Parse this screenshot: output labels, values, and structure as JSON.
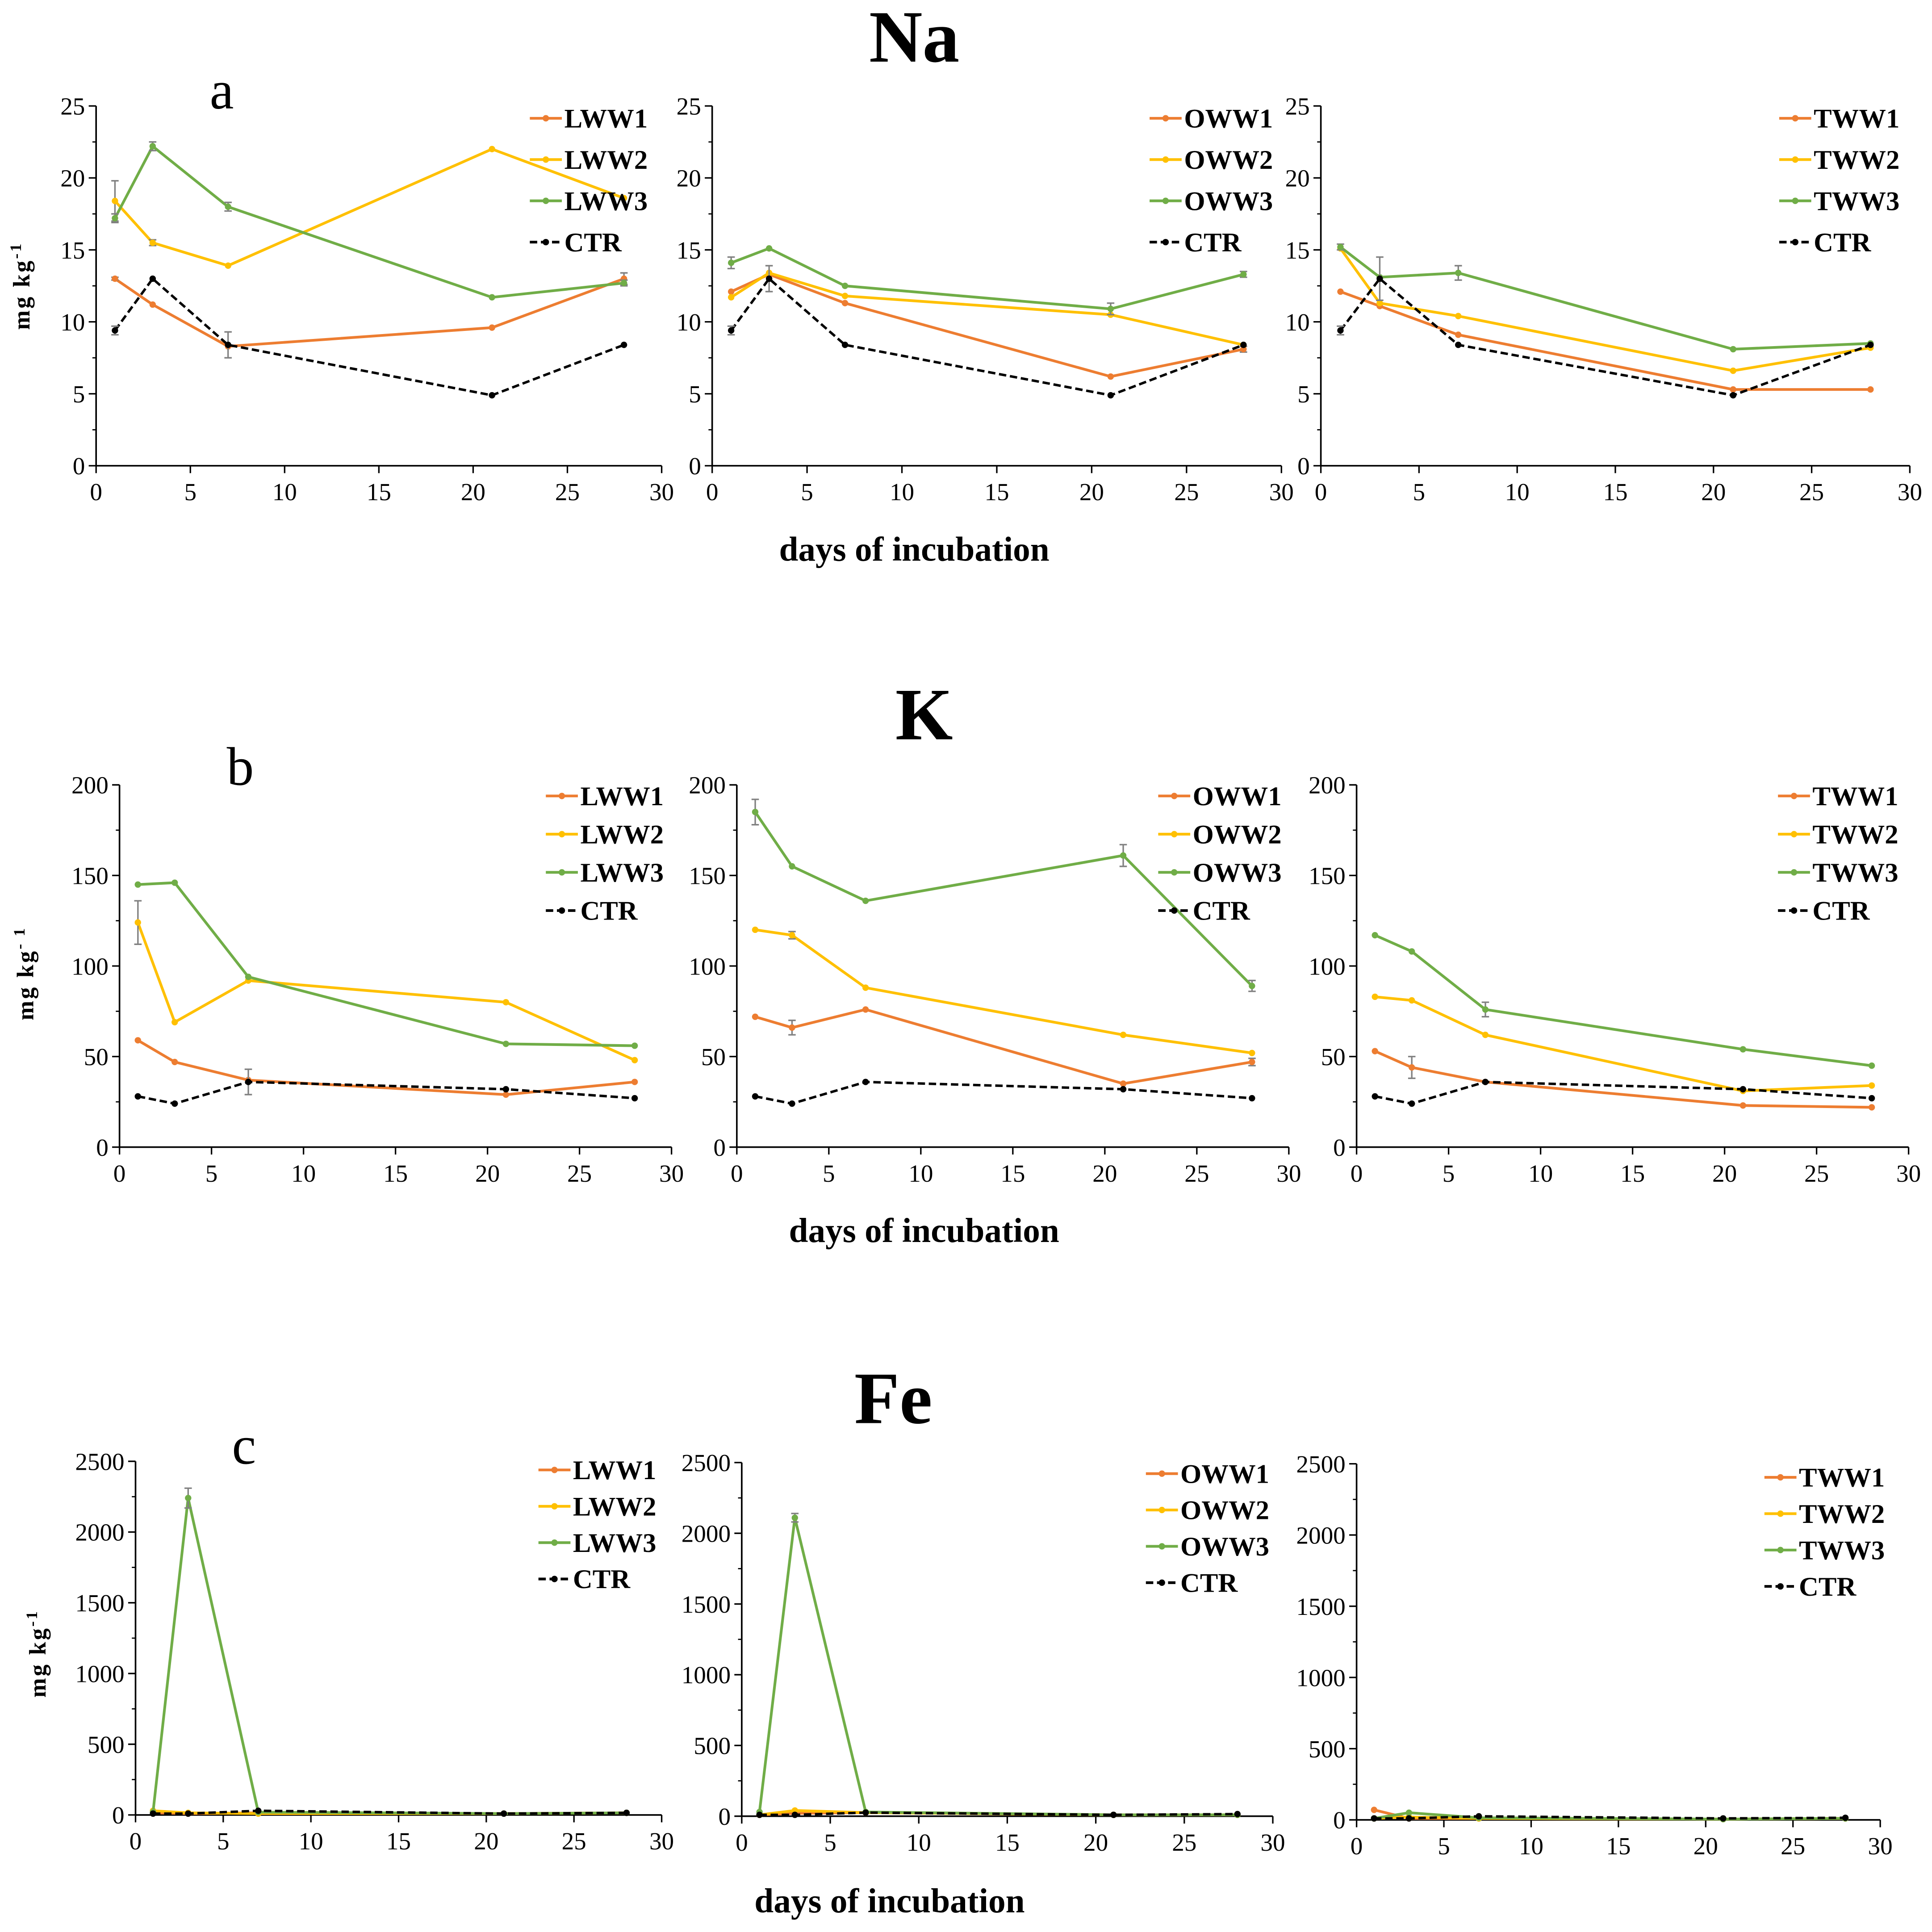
{
  "sections": [
    {
      "title": "Na",
      "panel_letter": "a",
      "xlabel": "days of incubation",
      "ylabel": "mg kg",
      "ylabel_sup": "-1"
    },
    {
      "title": "K",
      "panel_letter": "b",
      "xlabel": "days of incubation",
      "ylabel": "mg kg",
      "ylabel_sup": "- 1"
    },
    {
      "title": "Fe",
      "panel_letter": "c",
      "xlabel": "days of incubation",
      "ylabel": "mg kg",
      "ylabel_sup": "-1"
    }
  ],
  "colors": {
    "series1": "#ED7D31",
    "series2": "#FFC000",
    "series3": "#70AD47",
    "control": "#000000",
    "error_bar": "#808080",
    "axis": "#000000"
  },
  "chart_data": [
    {
      "type": "line",
      "legend": "top-right",
      "x": [
        1,
        3,
        7,
        21,
        28
      ],
      "xlim": [
        0,
        30
      ],
      "ylim": [
        0,
        25
      ],
      "xticks": [
        0,
        5,
        10,
        15,
        20,
        25,
        30
      ],
      "yticks": [
        0,
        5,
        10,
        15,
        20,
        25
      ],
      "series": [
        {
          "name": "LWW1",
          "color": "#ED7D31",
          "dashed": false,
          "values": [
            13.0,
            11.2,
            8.3,
            9.6,
            13.0
          ],
          "yerr": [
            0.1,
            0,
            0,
            0,
            0.4
          ]
        },
        {
          "name": "LWW2",
          "color": "#FFC000",
          "dashed": false,
          "values": [
            18.4,
            15.5,
            13.9,
            22.0,
            18.6
          ],
          "yerr": [
            1.4,
            0.2,
            0,
            0,
            0
          ]
        },
        {
          "name": "LWW3",
          "color": "#70AD47",
          "dashed": false,
          "values": [
            17.2,
            22.2,
            18.0,
            11.7,
            12.7
          ],
          "yerr": [
            0.3,
            0.3,
            0.3,
            0,
            0.2
          ]
        },
        {
          "name": "CTR",
          "color": "#000000",
          "dashed": true,
          "values": [
            9.4,
            13.0,
            8.4,
            4.9,
            8.4
          ],
          "yerr": [
            0.3,
            0,
            0.9,
            0,
            0
          ]
        }
      ]
    },
    {
      "type": "line",
      "legend": "top-right",
      "x": [
        1,
        3,
        7,
        21,
        28
      ],
      "xlim": [
        0,
        30
      ],
      "ylim": [
        0,
        25
      ],
      "xticks": [
        0,
        5,
        10,
        15,
        20,
        25,
        30
      ],
      "yticks": [
        0,
        5,
        10,
        15,
        20,
        25
      ],
      "series": [
        {
          "name": "OWW1",
          "color": "#ED7D31",
          "dashed": false,
          "values": [
            12.1,
            13.3,
            11.3,
            6.2,
            8.1
          ],
          "yerr": [
            0,
            0,
            0,
            0,
            0.2
          ]
        },
        {
          "name": "OWW2",
          "color": "#FFC000",
          "dashed": false,
          "values": [
            11.7,
            13.4,
            11.8,
            10.5,
            8.4
          ]
        },
        {
          "name": "OWW3",
          "color": "#70AD47",
          "dashed": false,
          "values": [
            14.1,
            15.1,
            12.5,
            10.9,
            13.3
          ],
          "yerr": [
            0.4,
            0,
            0,
            0.4,
            0.2
          ]
        },
        {
          "name": "CTR",
          "color": "#000000",
          "dashed": true,
          "values": [
            9.4,
            13.0,
            8.4,
            4.9,
            8.4
          ],
          "yerr": [
            0.3,
            0.9,
            0,
            0,
            0
          ]
        }
      ]
    },
    {
      "type": "line",
      "legend": "top-right",
      "x": [
        1,
        3,
        7,
        21,
        28
      ],
      "xlim": [
        0,
        30
      ],
      "ylim": [
        0,
        25
      ],
      "xticks": [
        0,
        5,
        10,
        15,
        20,
        25,
        30
      ],
      "yticks": [
        0,
        5,
        10,
        15,
        20,
        25
      ],
      "series": [
        {
          "name": "TWW1",
          "color": "#ED7D31",
          "dashed": false,
          "values": [
            12.1,
            11.1,
            9.1,
            5.3,
            5.3
          ]
        },
        {
          "name": "TWW2",
          "color": "#FFC000",
          "dashed": false,
          "values": [
            15.1,
            11.3,
            10.4,
            6.6,
            8.2
          ]
        },
        {
          "name": "TWW3",
          "color": "#70AD47",
          "dashed": false,
          "values": [
            15.2,
            13.1,
            13.4,
            8.1,
            8.5
          ],
          "yerr": [
            0.2,
            0,
            0.5,
            0,
            0
          ]
        },
        {
          "name": "CTR",
          "color": "#000000",
          "dashed": true,
          "values": [
            9.4,
            13.0,
            8.4,
            4.9,
            8.4
          ],
          "yerr": [
            0.3,
            1.5,
            0,
            0,
            0
          ]
        }
      ]
    },
    {
      "type": "line",
      "legend": "top-right",
      "x": [
        1,
        3,
        7,
        21,
        28
      ],
      "xlim": [
        0,
        30
      ],
      "ylim": [
        0,
        200
      ],
      "xticks": [
        0,
        5,
        10,
        15,
        20,
        25,
        30
      ],
      "yticks": [
        0,
        50,
        100,
        150,
        200
      ],
      "series": [
        {
          "name": "LWW1",
          "color": "#ED7D31",
          "dashed": false,
          "values": [
            59,
            47,
            37,
            29,
            36
          ]
        },
        {
          "name": "LWW2",
          "color": "#FFC000",
          "dashed": false,
          "values": [
            124,
            69,
            92,
            80,
            48
          ],
          "yerr": [
            12,
            0,
            0,
            0,
            0
          ]
        },
        {
          "name": "LWW3",
          "color": "#70AD47",
          "dashed": false,
          "values": [
            145,
            146,
            94,
            57,
            56
          ]
        },
        {
          "name": "CTR",
          "color": "#000000",
          "dashed": true,
          "values": [
            28,
            24,
            36,
            32,
            27
          ],
          "yerr": [
            0,
            0,
            7,
            0,
            0
          ]
        }
      ]
    },
    {
      "type": "line",
      "legend": "top-right",
      "x": [
        1,
        3,
        7,
        21,
        28
      ],
      "xlim": [
        0,
        30
      ],
      "ylim": [
        0,
        200
      ],
      "xticks": [
        0,
        5,
        10,
        15,
        20,
        25,
        30
      ],
      "yticks": [
        0,
        50,
        100,
        150,
        200
      ],
      "series": [
        {
          "name": "OWW1",
          "color": "#ED7D31",
          "dashed": false,
          "values": [
            72,
            66,
            76,
            35,
            47
          ],
          "yerr": [
            0,
            4,
            0,
            0,
            2
          ]
        },
        {
          "name": "OWW2",
          "color": "#FFC000",
          "dashed": false,
          "values": [
            120,
            117,
            88,
            62,
            52
          ],
          "yerr": [
            0,
            2,
            0,
            0,
            0
          ]
        },
        {
          "name": "OWW3",
          "color": "#70AD47",
          "dashed": false,
          "values": [
            185,
            155,
            136,
            161,
            89
          ],
          "yerr": [
            7,
            0,
            0,
            6,
            3
          ]
        },
        {
          "name": "CTR",
          "color": "#000000",
          "dashed": true,
          "values": [
            28,
            24,
            36,
            32,
            27
          ]
        }
      ]
    },
    {
      "type": "line",
      "legend": "top-right",
      "x": [
        1,
        3,
        7,
        21,
        28
      ],
      "xlim": [
        0,
        30
      ],
      "ylim": [
        0,
        200
      ],
      "xticks": [
        0,
        5,
        10,
        15,
        20,
        25,
        30
      ],
      "yticks": [
        0,
        50,
        100,
        150,
        200
      ],
      "series": [
        {
          "name": "TWW1",
          "color": "#ED7D31",
          "dashed": false,
          "values": [
            53,
            44,
            36,
            23,
            22
          ],
          "yerr": [
            0,
            6,
            0,
            0,
            0
          ]
        },
        {
          "name": "TWW2",
          "color": "#FFC000",
          "dashed": false,
          "values": [
            83,
            81,
            62,
            31,
            34
          ]
        },
        {
          "name": "TWW3",
          "color": "#70AD47",
          "dashed": false,
          "values": [
            117,
            108,
            76,
            54,
            45
          ],
          "yerr": [
            0,
            0,
            4,
            0,
            0
          ]
        },
        {
          "name": "CTR",
          "color": "#000000",
          "dashed": true,
          "values": [
            28,
            24,
            36,
            32,
            27
          ]
        }
      ]
    },
    {
      "type": "line",
      "legend": "top-right",
      "x": [
        1,
        3,
        7,
        21,
        28
      ],
      "xlim": [
        0,
        30
      ],
      "ylim": [
        0,
        2500
      ],
      "xticks": [
        0,
        5,
        10,
        15,
        20,
        25,
        30
      ],
      "yticks": [
        0,
        500,
        1000,
        1500,
        2000,
        2500
      ],
      "series": [
        {
          "name": "LWW1",
          "color": "#ED7D31",
          "dashed": false,
          "values": [
            15,
            10,
            15,
            10,
            15
          ]
        },
        {
          "name": "LWW2",
          "color": "#FFC000",
          "dashed": false,
          "values": [
            30,
            15,
            10,
            10,
            15
          ]
        },
        {
          "name": "LWW3",
          "color": "#70AD47",
          "dashed": false,
          "values": [
            20,
            2240,
            20,
            10,
            15
          ],
          "yerr": [
            0,
            70,
            0,
            0,
            0
          ]
        },
        {
          "name": "CTR",
          "color": "#000000",
          "dashed": true,
          "values": [
            10,
            10,
            30,
            10,
            15
          ]
        }
      ]
    },
    {
      "type": "line",
      "legend": "top-right",
      "x": [
        1,
        3,
        7,
        21,
        28
      ],
      "xlim": [
        0,
        30
      ],
      "ylim": [
        0,
        2500
      ],
      "xticks": [
        0,
        5,
        10,
        15,
        20,
        25,
        30
      ],
      "yticks": [
        0,
        500,
        1000,
        1500,
        2000,
        2500
      ],
      "series": [
        {
          "name": "OWW1",
          "color": "#ED7D31",
          "dashed": false,
          "values": [
            10,
            20,
            25,
            10,
            10
          ]
        },
        {
          "name": "OWW2",
          "color": "#FFC000",
          "dashed": false,
          "values": [
            10,
            40,
            25,
            10,
            10
          ]
        },
        {
          "name": "OWW3",
          "color": "#70AD47",
          "dashed": false,
          "values": [
            30,
            2110,
            30,
            10,
            10
          ],
          "yerr": [
            0,
            30,
            0,
            0,
            0
          ]
        },
        {
          "name": "CTR",
          "color": "#000000",
          "dashed": true,
          "values": [
            10,
            10,
            25,
            10,
            15
          ]
        }
      ]
    },
    {
      "type": "line",
      "legend": "top-right",
      "x": [
        1,
        3,
        7,
        21,
        28
      ],
      "xlim": [
        0,
        30
      ],
      "ylim": [
        0,
        2500
      ],
      "xticks": [
        0,
        5,
        10,
        15,
        20,
        25,
        30
      ],
      "yticks": [
        0,
        500,
        1000,
        1500,
        2000,
        2500
      ],
      "series": [
        {
          "name": "TWW1",
          "color": "#ED7D31",
          "dashed": false,
          "values": [
            70,
            10,
            10,
            5,
            10
          ]
        },
        {
          "name": "TWW2",
          "color": "#FFC000",
          "dashed": false,
          "values": [
            10,
            20,
            10,
            5,
            10
          ]
        },
        {
          "name": "TWW3",
          "color": "#70AD47",
          "dashed": false,
          "values": [
            10,
            50,
            15,
            5,
            10
          ]
        },
        {
          "name": "CTR",
          "color": "#000000",
          "dashed": true,
          "values": [
            10,
            10,
            25,
            10,
            15
          ]
        }
      ]
    }
  ]
}
